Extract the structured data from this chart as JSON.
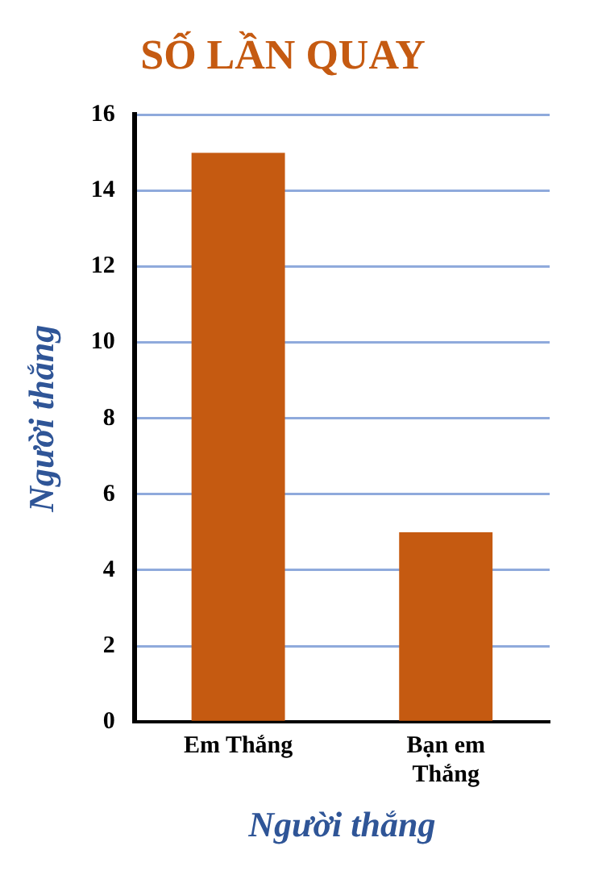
{
  "chart_data": {
    "type": "bar",
    "title": "SỐ LẦN QUAY",
    "xlabel": "Người thắng",
    "ylabel": "Người thắng",
    "categories": [
      "Em Thắng",
      "Bạn em Thắng"
    ],
    "values": [
      15,
      5
    ],
    "color": "#c55a11",
    "ylim": [
      0,
      16
    ],
    "yticks": [
      0,
      2,
      4,
      6,
      8,
      10,
      12,
      14,
      16
    ],
    "grid": "y",
    "legend": false
  }
}
